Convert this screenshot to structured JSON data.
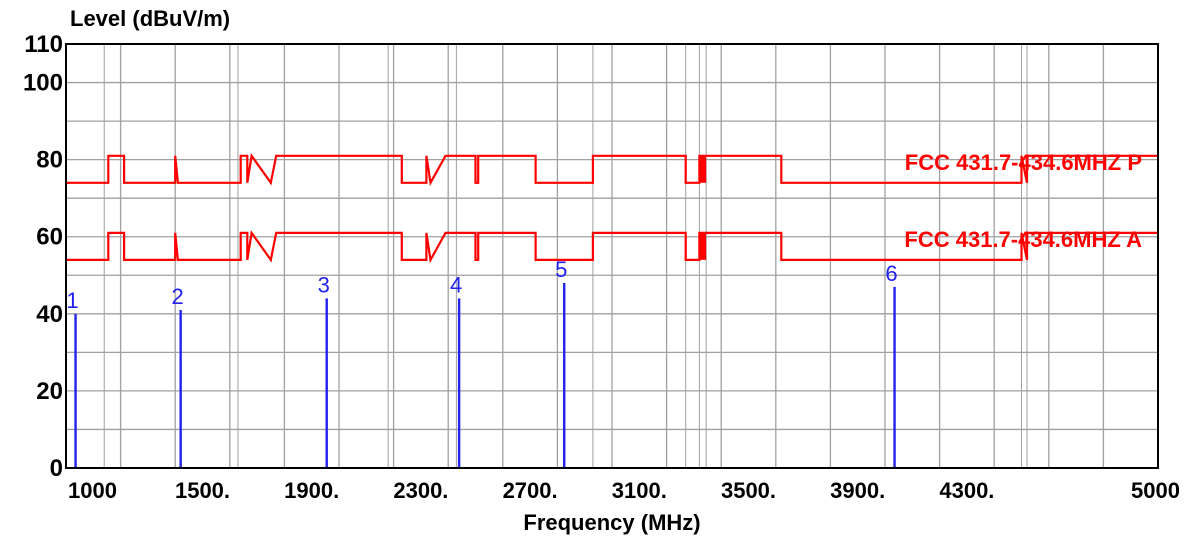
{
  "chart_data": {
    "type": "line",
    "ylabel": "Level (dBuV/m)",
    "xlabel": "Frequency (MHz)",
    "xlim": [
      1000,
      5000
    ],
    "ylim": [
      0,
      110
    ],
    "yticks": [
      {
        "value": 0,
        "label": "0"
      },
      {
        "value": 20,
        "label": "20"
      },
      {
        "value": 40,
        "label": "40"
      },
      {
        "value": 60,
        "label": "60"
      },
      {
        "value": 80,
        "label": "80"
      },
      {
        "value": 100,
        "label": "100"
      },
      {
        "value": 110,
        "label": "110"
      }
    ],
    "xticks": [
      {
        "value": 1000,
        "label": "1000"
      },
      {
        "value": 1500,
        "label": "1500."
      },
      {
        "value": 1900,
        "label": "1900."
      },
      {
        "value": 2300,
        "label": "2300."
      },
      {
        "value": 2700,
        "label": "2700."
      },
      {
        "value": 3100,
        "label": "3100."
      },
      {
        "value": 3500,
        "label": "3500."
      },
      {
        "value": 3900,
        "label": "3900."
      },
      {
        "value": 4300,
        "label": "4300."
      },
      {
        "value": 5000,
        "label": "5000"
      }
    ],
    "grid": true,
    "colors": {
      "limit": "#ff0000",
      "marker": "#2222ee",
      "grid": "#a0a0a0",
      "frame": "#000000"
    },
    "series": [
      {
        "name": "FCC 431.7-434.6MHZ P",
        "x": [
          1000,
          1155,
          1155,
          1213,
          1213,
          1400,
          1400,
          1410,
          1410,
          1640,
          1640,
          1664,
          1664,
          1680,
          1680,
          1750,
          1750,
          1770,
          1770,
          2230,
          2230,
          2320,
          2320,
          2335,
          2335,
          2390,
          2390,
          2500,
          2500,
          2510,
          2510,
          2720,
          2720,
          2930,
          2930,
          3270,
          3270,
          3320,
          3320,
          3345,
          3345,
          3620,
          3620,
          4500,
          4500,
          4520,
          4520,
          5000
        ],
        "y": [
          74,
          74,
          81,
          81,
          74,
          74,
          81,
          74,
          74,
          74,
          81,
          81,
          74,
          81,
          81,
          74,
          74,
          81,
          81,
          81,
          74,
          74,
          81,
          74,
          74,
          81,
          81,
          81,
          74,
          74,
          81,
          81,
          74,
          74,
          81,
          81,
          74,
          74,
          81,
          81,
          81,
          81,
          74,
          74,
          81,
          74,
          81,
          81
        ]
      },
      {
        "name": "FCC 431.7-434.6MHZ A",
        "x": [
          1000,
          1155,
          1155,
          1213,
          1213,
          1400,
          1400,
          1410,
          1410,
          1640,
          1640,
          1664,
          1664,
          1680,
          1680,
          1750,
          1750,
          1770,
          1770,
          2230,
          2230,
          2320,
          2320,
          2335,
          2335,
          2390,
          2390,
          2500,
          2500,
          2510,
          2510,
          2720,
          2720,
          2930,
          2930,
          3270,
          3270,
          3320,
          3320,
          3345,
          3345,
          3620,
          3620,
          4500,
          4500,
          4520,
          4520,
          5000
        ],
        "y": [
          54,
          54,
          61,
          61,
          54,
          54,
          61,
          54,
          54,
          54,
          61,
          61,
          54,
          61,
          61,
          54,
          54,
          61,
          61,
          61,
          54,
          54,
          61,
          54,
          54,
          61,
          61,
          61,
          54,
          54,
          61,
          61,
          54,
          54,
          61,
          61,
          54,
          54,
          61,
          61,
          61,
          61,
          54,
          54,
          61,
          54,
          61,
          61
        ]
      }
    ],
    "markers": [
      {
        "label": "1",
        "x": 1035,
        "y": 40
      },
      {
        "label": "2",
        "x": 1420,
        "y": 41
      },
      {
        "label": "3",
        "x": 1955,
        "y": 44
      },
      {
        "label": "4",
        "x": 2440,
        "y": 44
      },
      {
        "label": "5",
        "x": 2825,
        "y": 48
      },
      {
        "label": "6",
        "x": 4035,
        "y": 47
      }
    ],
    "extra_vlines": [
      1140,
      1630,
      2180,
      2430,
      2930,
      3270,
      3320,
      3345,
      4500,
      4520
    ]
  }
}
